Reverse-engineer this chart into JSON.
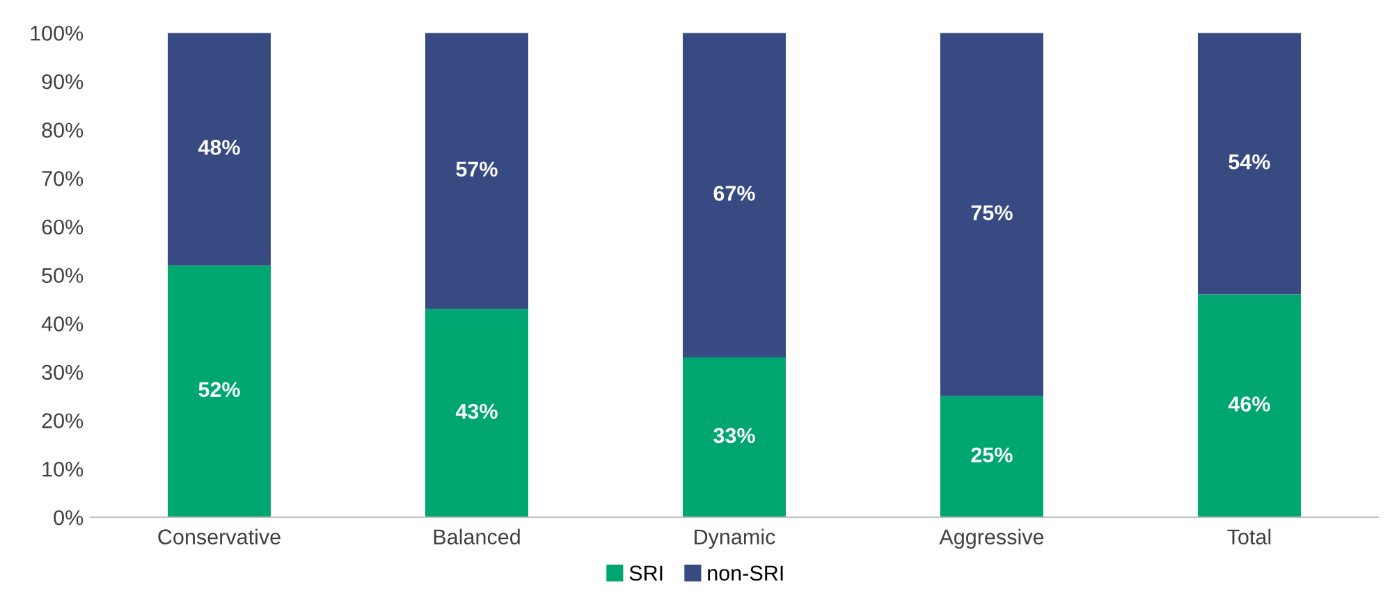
{
  "chart_data": {
    "type": "bar",
    "stacked": true,
    "categories": [
      "Conservative",
      "Balanced",
      "Dynamic",
      "Aggressive",
      "Total"
    ],
    "series": [
      {
        "name": "SRI",
        "color": "#00a66f",
        "values": [
          52,
          43,
          33,
          25,
          46
        ],
        "value_labels": [
          "52%",
          "43%",
          "33%",
          "25%",
          "46%"
        ]
      },
      {
        "name": "non-SRI",
        "color": "#374a82",
        "values": [
          48,
          57,
          67,
          75,
          54
        ],
        "value_labels": [
          "48%",
          "57%",
          "67%",
          "75%",
          "54%"
        ]
      }
    ],
    "ylim": [
      0,
      100
    ],
    "yticks": [
      {
        "value": 0,
        "label": "0%"
      },
      {
        "value": 10,
        "label": "10%"
      },
      {
        "value": 20,
        "label": "20%"
      },
      {
        "value": 30,
        "label": "30%"
      },
      {
        "value": 40,
        "label": "40%"
      },
      {
        "value": 50,
        "label": "50%"
      },
      {
        "value": 60,
        "label": "60%"
      },
      {
        "value": 70,
        "label": "70%"
      },
      {
        "value": 80,
        "label": "80%"
      },
      {
        "value": 90,
        "label": "90%"
      },
      {
        "value": 100,
        "label": "100%"
      }
    ],
    "grid": false,
    "legend": "bottom"
  }
}
